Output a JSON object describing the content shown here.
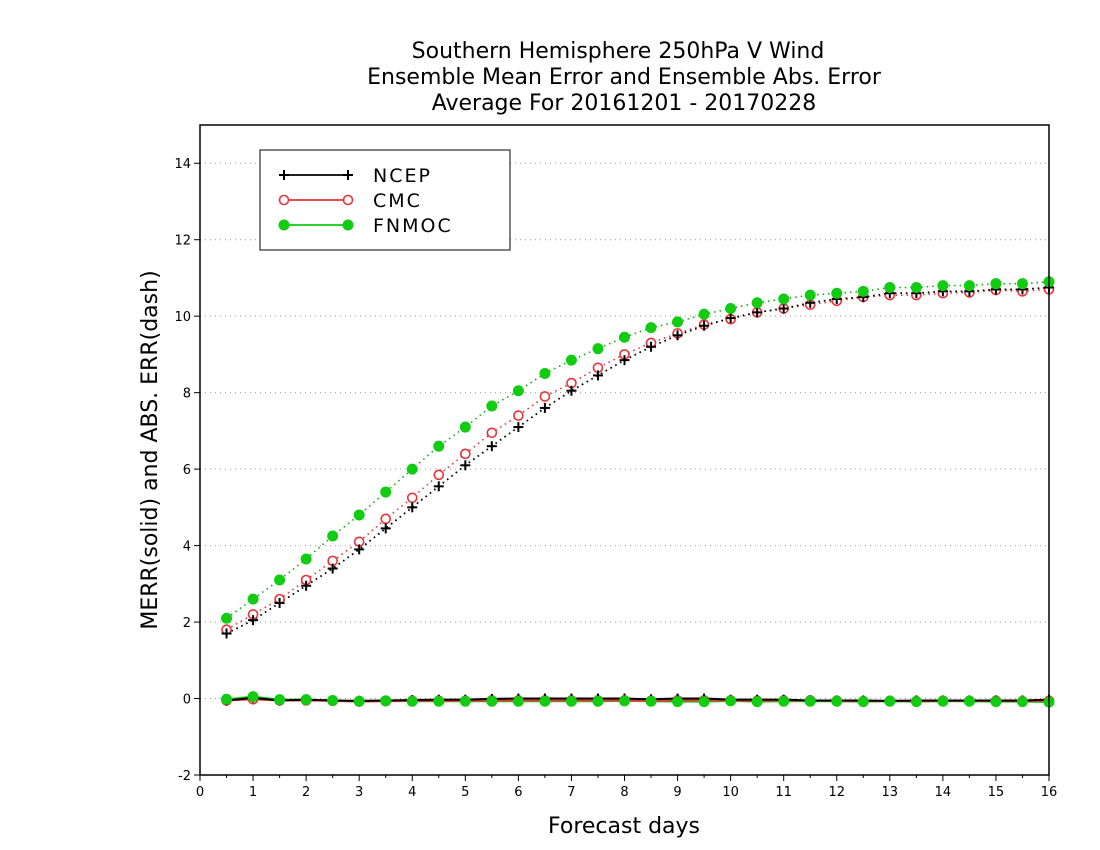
{
  "chart_data": {
    "type": "line",
    "title": [
      "Southern Hemisphere 250hPa V Wind",
      "Ensemble Mean Error and Ensemble Abs. Error",
      "Average For 20161201 - 20170228"
    ],
    "xlabel": "Forecast days",
    "ylabel": "MERR(solid) and ABS. ERR(dash)",
    "xlim": [
      0,
      16
    ],
    "ylim": [
      -2,
      15
    ],
    "xticks": [
      "0",
      "1",
      "2",
      "3",
      "4",
      "5",
      "6",
      "7",
      "8",
      "9",
      "10",
      "11",
      "12",
      "13",
      "14",
      "15",
      "16"
    ],
    "yticks": [
      "-2",
      "0",
      "2",
      "4",
      "6",
      "8",
      "10",
      "12",
      "14"
    ],
    "grid": "horizontal dotted",
    "legend_position": "top-left",
    "x": [
      0.5,
      1,
      1.5,
      2,
      2.5,
      3,
      3.5,
      4,
      4.5,
      5,
      5.5,
      6,
      6.5,
      7,
      7.5,
      8,
      8.5,
      9,
      9.5,
      10,
      10.5,
      11,
      11.5,
      12,
      12.5,
      13,
      13.5,
      14,
      14.5,
      15,
      15.5,
      16
    ],
    "series": [
      {
        "name": "NCEP",
        "color": "#000000",
        "marker": "plus",
        "merr": [
          -0.05,
          0.02,
          -0.05,
          -0.03,
          -0.05,
          -0.06,
          -0.05,
          -0.04,
          -0.03,
          -0.03,
          -0.01,
          0.0,
          0.0,
          0.0,
          0.0,
          0.0,
          -0.02,
          0.0,
          0.0,
          -0.03,
          -0.03,
          -0.03,
          -0.05,
          -0.05,
          -0.05,
          -0.06,
          -0.05,
          -0.05,
          -0.05,
          -0.05,
          -0.05,
          -0.03
        ],
        "abs_err": [
          1.7,
          2.05,
          2.5,
          2.95,
          3.4,
          3.9,
          4.45,
          5.0,
          5.55,
          6.1,
          6.6,
          7.1,
          7.6,
          8.05,
          8.45,
          8.85,
          9.2,
          9.5,
          9.75,
          9.95,
          10.1,
          10.2,
          10.35,
          10.45,
          10.5,
          10.6,
          10.6,
          10.65,
          10.65,
          10.7,
          10.7,
          10.75
        ]
      },
      {
        "name": "CMC",
        "color": "#e8333a",
        "marker": "circle-open",
        "merr": [
          -0.05,
          -0.02,
          -0.05,
          -0.05,
          -0.06,
          -0.08,
          -0.07,
          -0.06,
          -0.06,
          -0.06,
          -0.05,
          -0.05,
          -0.05,
          -0.05,
          -0.05,
          -0.05,
          -0.06,
          -0.05,
          -0.05,
          -0.05,
          -0.06,
          -0.05,
          -0.05,
          -0.06,
          -0.07,
          -0.06,
          -0.07,
          -0.06,
          -0.06,
          -0.06,
          -0.07,
          -0.06
        ],
        "abs_err": [
          1.8,
          2.2,
          2.6,
          3.1,
          3.6,
          4.1,
          4.7,
          5.25,
          5.85,
          6.4,
          6.95,
          7.4,
          7.9,
          8.25,
          8.65,
          9.0,
          9.3,
          9.55,
          9.78,
          9.92,
          10.1,
          10.2,
          10.3,
          10.4,
          10.5,
          10.55,
          10.55,
          10.6,
          10.62,
          10.68,
          10.65,
          10.7
        ]
      },
      {
        "name": "FNMOC",
        "color": "#11cc11",
        "marker": "circle-filled",
        "merr": [
          -0.02,
          0.05,
          -0.03,
          -0.03,
          -0.05,
          -0.07,
          -0.06,
          -0.07,
          -0.07,
          -0.07,
          -0.07,
          -0.07,
          -0.07,
          -0.07,
          -0.07,
          -0.06,
          -0.07,
          -0.08,
          -0.08,
          -0.06,
          -0.08,
          -0.07,
          -0.07,
          -0.07,
          -0.08,
          -0.07,
          -0.08,
          -0.07,
          -0.07,
          -0.08,
          -0.08,
          -0.09
        ],
        "abs_err": [
          2.1,
          2.6,
          3.1,
          3.65,
          4.25,
          4.8,
          5.4,
          6.0,
          6.6,
          7.1,
          7.65,
          8.05,
          8.5,
          8.85,
          9.15,
          9.45,
          9.7,
          9.85,
          10.05,
          10.2,
          10.35,
          10.45,
          10.55,
          10.6,
          10.65,
          10.75,
          10.75,
          10.8,
          10.8,
          10.85,
          10.85,
          10.9
        ]
      }
    ]
  }
}
